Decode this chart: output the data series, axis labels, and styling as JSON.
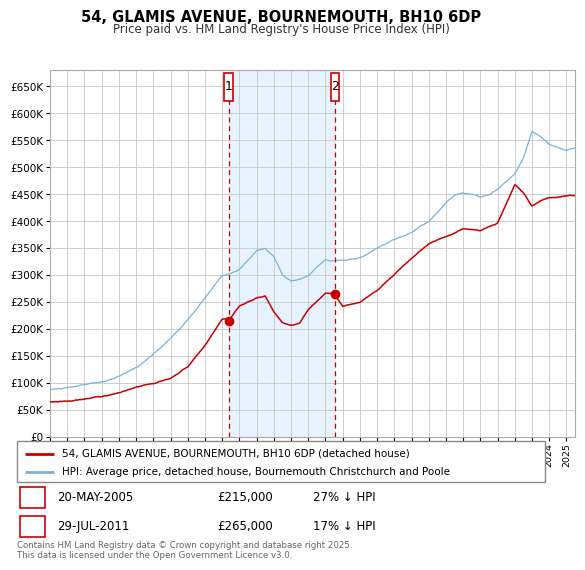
{
  "title": "54, GLAMIS AVENUE, BOURNEMOUTH, BH10 6DP",
  "subtitle": "Price paid vs. HM Land Registry's House Price Index (HPI)",
  "background_color": "#ffffff",
  "plot_bg_color": "#ffffff",
  "grid_color": "#c8c8c8",
  "hpi_color": "#7ab4d8",
  "price_color": "#cc0000",
  "ylim": [
    0,
    680000
  ],
  "sale1_x": 2005.38,
  "sale1_y": 215000,
  "sale2_x": 2011.56,
  "sale2_y": 265000,
  "legend_line1": "54, GLAMIS AVENUE, BOURNEMOUTH, BH10 6DP (detached house)",
  "legend_line2": "HPI: Average price, detached house, Bournemouth Christchurch and Poole",
  "sale1_date": "20-MAY-2005",
  "sale1_price": "£215,000",
  "sale1_pct": "27% ↓ HPI",
  "sale2_date": "29-JUL-2011",
  "sale2_price": "£265,000",
  "sale2_pct": "17% ↓ HPI",
  "footer": "Contains HM Land Registry data © Crown copyright and database right 2025.\nThis data is licensed under the Open Government Licence v3.0.",
  "xmin": 1995,
  "xmax": 2025.5
}
